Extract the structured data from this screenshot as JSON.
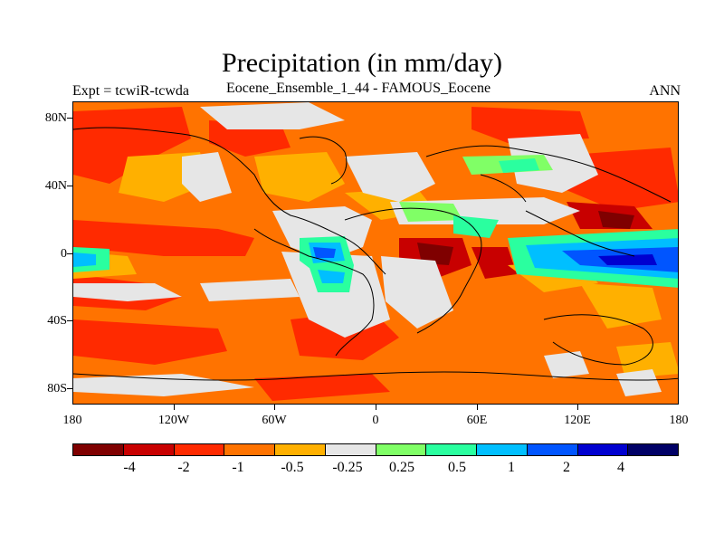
{
  "title": "Precipitation (in mm/day)",
  "subtitle_left": "Expt = tcwiR-tcwda",
  "subtitle_center": "Eocene_Ensemble_1_44 - FAMOUS_Eocene",
  "subtitle_right": "ANN",
  "lat_labels": [
    "80N",
    "40N",
    "0",
    "40S",
    "80S"
  ],
  "lon_labels": [
    "180",
    "120W",
    "60W",
    "0",
    "60E",
    "120E",
    "180"
  ],
  "colorbar": {
    "colors": [
      "#7f0000",
      "#c80000",
      "#ff2a00",
      "#ff7300",
      "#ffb000",
      "#e6e6e6",
      "#80ff66",
      "#2aff9f",
      "#00bfff",
      "#0055ff",
      "#0000d0",
      "#000066"
    ],
    "labels": [
      "-4",
      "-2",
      "-1",
      "-0.5",
      "-0.25",
      "0.25",
      "0.5",
      "1",
      "2",
      "4"
    ]
  },
  "map": {
    "background_color": "#ff7300",
    "coastline_color": "#000000"
  }
}
